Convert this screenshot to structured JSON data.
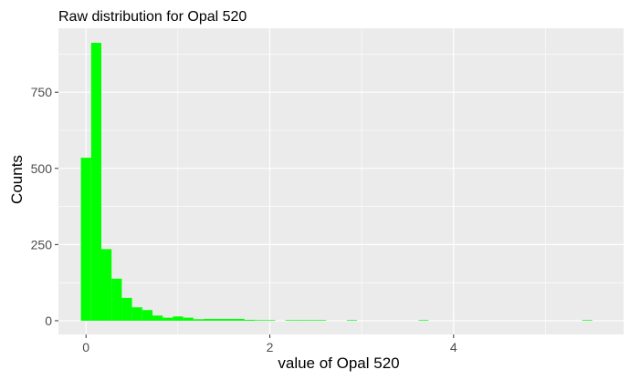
{
  "chart_data": {
    "type": "bar",
    "title": "Raw distribution for Opal 520",
    "xlabel": "value of Opal 520",
    "ylabel": "Counts",
    "xlim": [
      -0.3,
      5.85
    ],
    "ylim": [
      -45,
      960
    ],
    "x_ticks": [
      0,
      2,
      4
    ],
    "y_ticks": [
      0,
      250,
      500,
      750
    ],
    "bin_width": 0.1113,
    "bin_centers": [
      0.0,
      0.1113,
      0.2226,
      0.3339,
      0.4452,
      0.5565,
      0.6678,
      0.7791,
      0.8904,
      1.0017,
      1.113,
      1.2243,
      1.3356,
      1.4469,
      1.5582,
      1.6695,
      1.7808,
      1.8921,
      2.0034,
      2.1147,
      2.226,
      2.3373,
      2.4486,
      2.5599,
      2.6712,
      2.7825,
      2.8938,
      3.0051,
      3.1164,
      3.2277,
      3.339,
      3.4503,
      3.5616,
      3.6729,
      3.7842,
      3.8955,
      4.0068,
      4.1181,
      4.2294,
      4.3407,
      4.452,
      4.5633,
      4.6746,
      4.7859,
      4.8972,
      5.0085,
      5.1198,
      5.2311,
      5.3424,
      5.4537,
      5.565
    ],
    "counts": [
      535,
      912,
      235,
      138,
      75,
      44,
      35,
      17,
      10,
      14,
      10,
      5,
      6,
      6,
      6,
      6,
      3,
      2,
      2,
      0,
      2,
      2,
      2,
      2,
      0,
      0,
      2,
      0,
      0,
      0,
      0,
      0,
      0,
      2,
      0,
      0,
      0,
      0,
      0,
      0,
      0,
      0,
      0,
      0,
      0,
      0,
      0,
      0,
      0,
      2,
      0
    ],
    "fill_color": "#00ff00",
    "panel_color": "#ebebeb",
    "grid": true
  }
}
